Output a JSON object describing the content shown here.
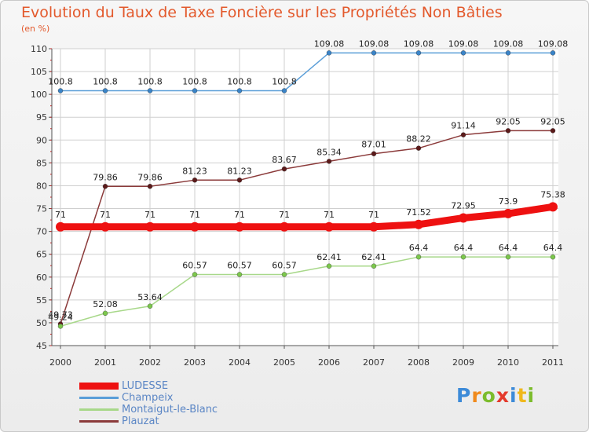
{
  "colors": {
    "title": "#e3592c",
    "grid": "#cfcfcf",
    "axis": "#555555",
    "legend_text": "#5b86c5"
  },
  "chart_data": {
    "type": "line",
    "title": "Evolution du Taux de Taxe Foncière sur les Propriétés Non Bâties",
    "ylabel": "(en %)",
    "xlabel": "",
    "ylim": [
      45,
      110
    ],
    "yticks": [
      45,
      50,
      55,
      60,
      65,
      70,
      75,
      80,
      85,
      90,
      95,
      100,
      105,
      110
    ],
    "grid": true,
    "legend_position": "bottom-left",
    "x": [
      "2000",
      "2001",
      "2002",
      "2003",
      "2004",
      "2005",
      "2006",
      "2007",
      "2008",
      "2009",
      "2010",
      "2011"
    ],
    "series": [
      {
        "name": "Champeix",
        "color": "#5a9ed8",
        "marker_color": "#3a84c8",
        "width": 1.5,
        "values": [
          100.8,
          100.8,
          100.8,
          100.8,
          100.8,
          100.8,
          109.08,
          109.08,
          109.08,
          109.08,
          109.08,
          109.08
        ],
        "labels": [
          "100.8",
          "100.8",
          "100.8",
          "100.8",
          "100.8",
          "100.8",
          "109.08",
          "109.08",
          "109.08",
          "109.08",
          "109.08",
          "109.08"
        ]
      },
      {
        "name": "Plauzat",
        "color": "#8b3a3a",
        "marker_color": "#5c1a1a",
        "width": 1.5,
        "values": [
          49.73,
          79.86,
          79.86,
          81.23,
          81.23,
          83.67,
          85.34,
          87.01,
          88.22,
          91.14,
          92.05,
          92.05
        ],
        "labels": [
          "49.73",
          "79.86",
          "79.86",
          "81.23",
          "81.23",
          "83.67",
          "85.34",
          "87.01",
          "88.22",
          "91.14",
          "92.05",
          "92.05"
        ]
      },
      {
        "name": "Montaigut-le-Blanc",
        "color": "#a8d88a",
        "marker_color": "#7cc84c",
        "width": 1.5,
        "values": [
          49.24,
          52.08,
          53.64,
          60.57,
          60.57,
          60.57,
          62.41,
          62.41,
          64.4,
          64.4,
          64.4,
          64.4
        ],
        "labels": [
          "49.24",
          "52.08",
          "53.64",
          "60.57",
          "60.57",
          "60.57",
          "62.41",
          "62.41",
          "64.4",
          "64.4",
          "64.4",
          "64.4"
        ]
      },
      {
        "name": "LUDESSE",
        "color": "#ee1111",
        "marker_color": "#ee1111",
        "width": 9,
        "values": [
          71,
          71,
          71,
          71,
          71,
          71,
          71,
          71,
          71.52,
          72.95,
          73.9,
          75.38
        ],
        "labels": [
          "71",
          "71",
          "71",
          "71",
          "71",
          "71",
          "71",
          "71",
          "71.52",
          "72.95",
          "73.9",
          "75.38"
        ]
      }
    ],
    "legend": [
      "LUDESSE",
      "Champeix",
      "Montaigut-le-Blanc",
      "Plauzat"
    ]
  },
  "brand": {
    "letters": [
      "P",
      "r",
      "o",
      "x",
      "i",
      "t",
      "i"
    ]
  }
}
